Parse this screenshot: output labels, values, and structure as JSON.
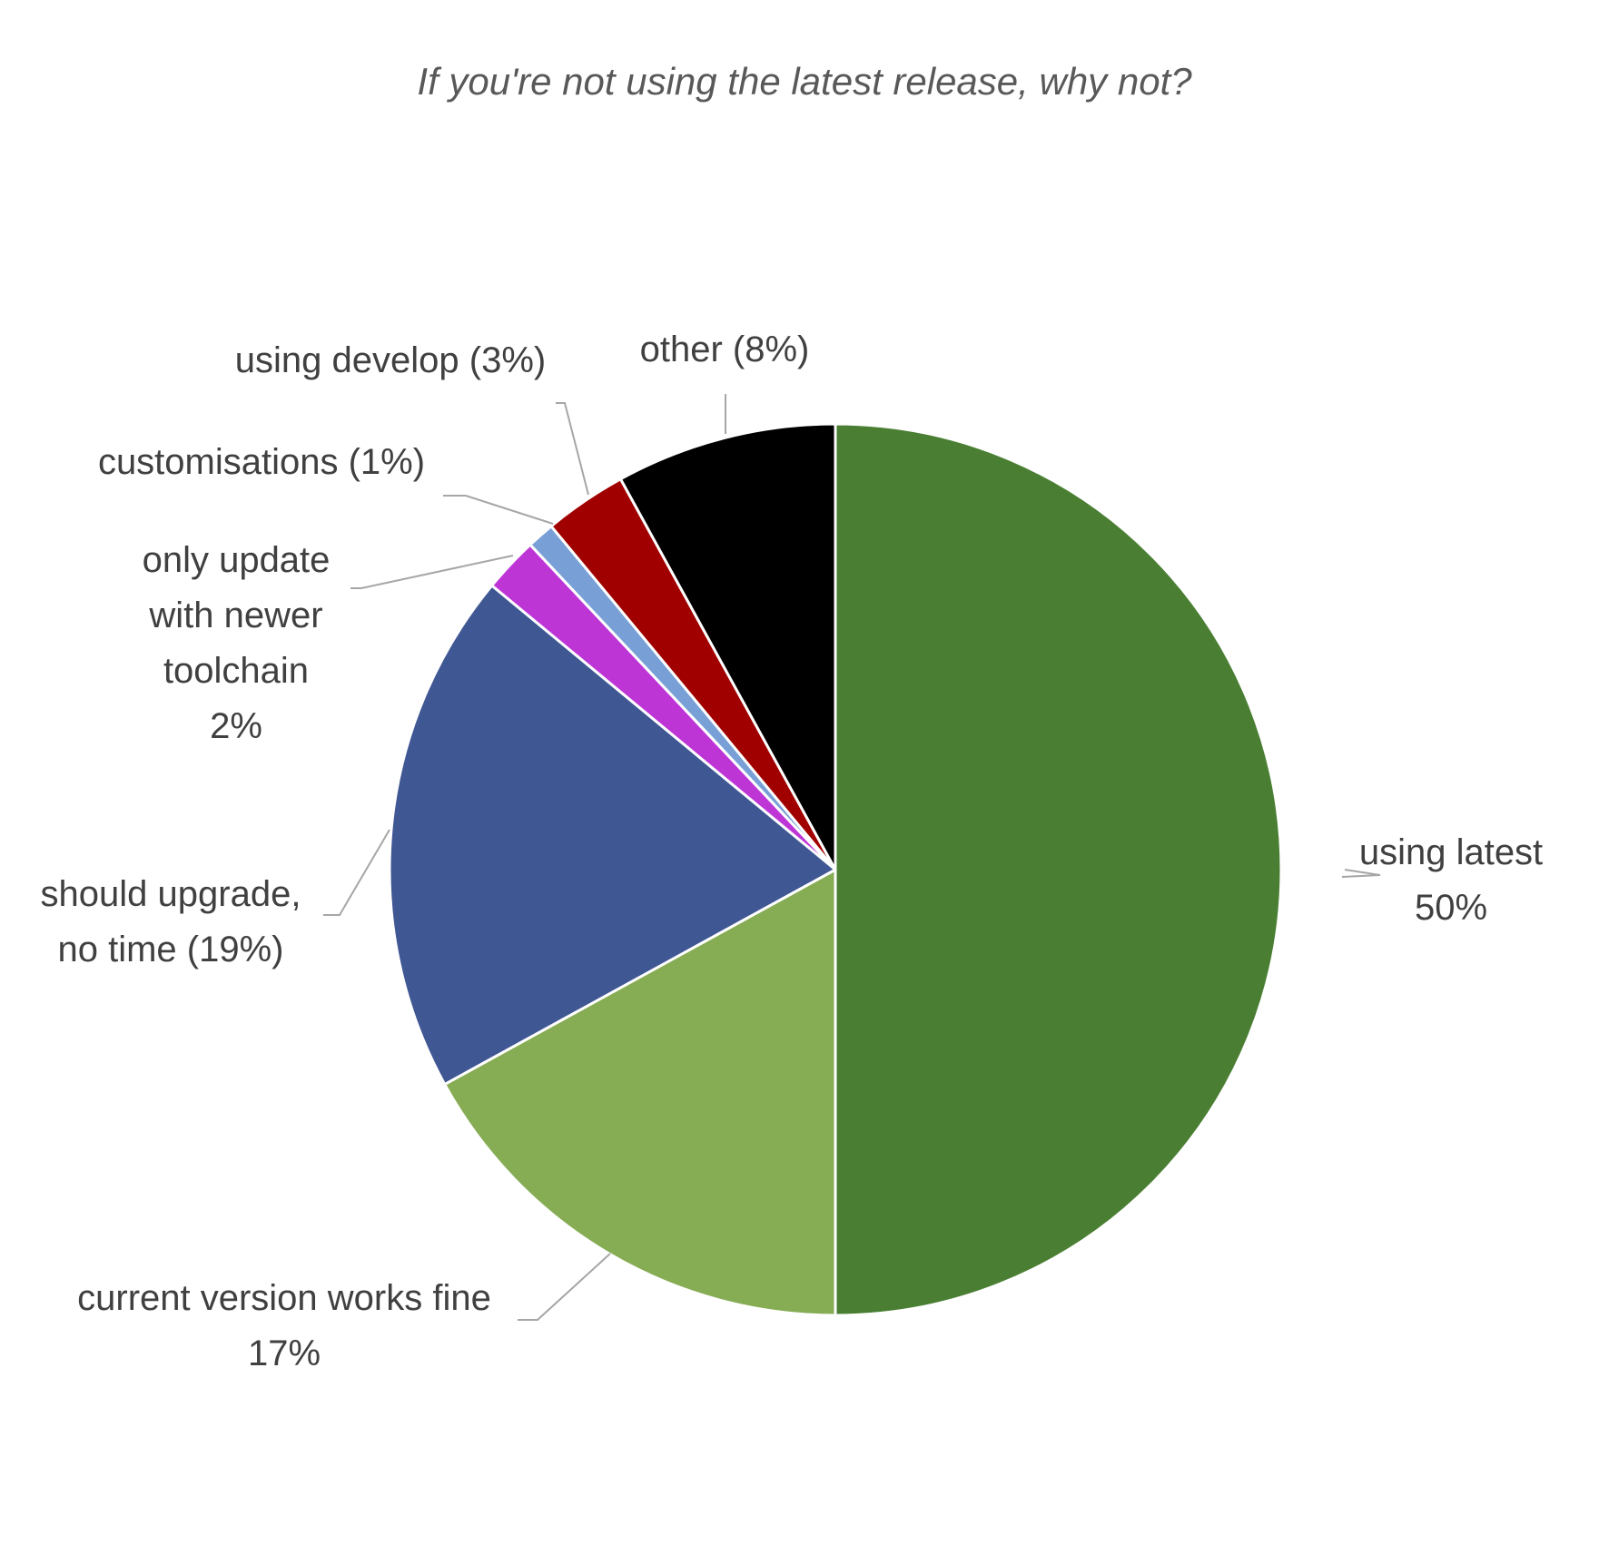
{
  "chart_data": {
    "type": "pie",
    "title": "If you're not using the latest release, why not?",
    "start_angle_deg": 0,
    "direction": "clockwise",
    "legend": "none",
    "slices": [
      {
        "name": "using latest",
        "value": 50,
        "color": "#4a7f33",
        "label_lines": [
          "using latest",
          "50%"
        ]
      },
      {
        "name": "current version works fine",
        "value": 17,
        "color": "#86ac54",
        "label_lines": [
          "current version works fine",
          "17%"
        ]
      },
      {
        "name": "should upgrade, no time",
        "value": 19,
        "color": "#3f5793",
        "label_lines": [
          "should upgrade,",
          "no time (19%)"
        ]
      },
      {
        "name": "only update with newer toolchain",
        "value": 2,
        "color": "#be35d6",
        "label_lines": [
          "only update",
          "with newer",
          "toolchain",
          "2%"
        ]
      },
      {
        "name": "customisations",
        "value": 1,
        "color": "#79a0d6",
        "label_lines": [
          "customisations (1%)"
        ]
      },
      {
        "name": "using develop",
        "value": 3,
        "color": "#a00000",
        "label_lines": [
          "using develop (3%)"
        ]
      },
      {
        "name": "other",
        "value": 8,
        "color": "#000000",
        "label_lines": [
          "other (8%)"
        ]
      }
    ]
  }
}
